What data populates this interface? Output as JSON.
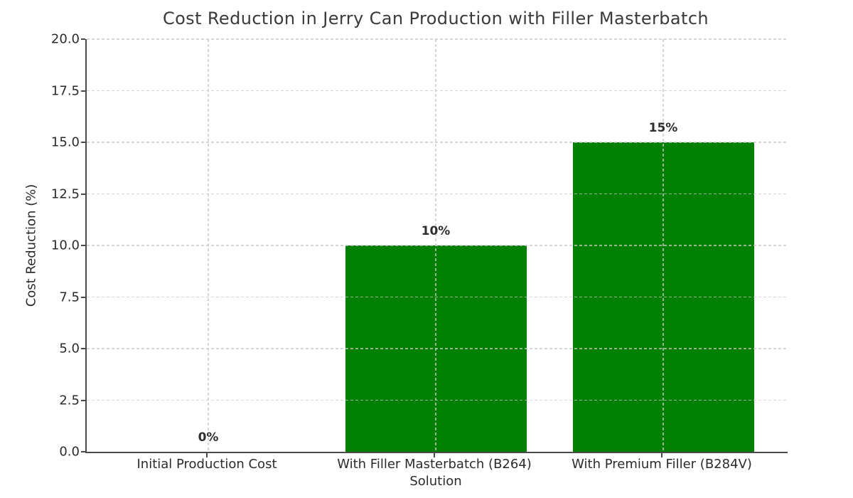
{
  "chart_data": {
    "type": "bar",
    "title": "Cost Reduction in Jerry Can Production with Filler Masterbatch",
    "xlabel": "Solution",
    "ylabel": "Cost Reduction (%)",
    "categories": [
      "Initial Production Cost",
      "With Filler Masterbatch (B264)",
      "With Premium Filler (B284V)"
    ],
    "values": [
      0,
      10,
      15
    ],
    "bar_labels": [
      "0%",
      "10%",
      "15%"
    ],
    "bar_color": "#008000",
    "ylim": [
      0,
      20
    ],
    "ytick_step": 2.5,
    "ytick_labels": [
      "0.0",
      "2.5",
      "5.0",
      "7.5",
      "10.0",
      "12.5",
      "15.0",
      "17.5",
      "20.0"
    ],
    "grid": "dashed-both-axes",
    "legend": "none",
    "background_color": "#ffffff"
  }
}
